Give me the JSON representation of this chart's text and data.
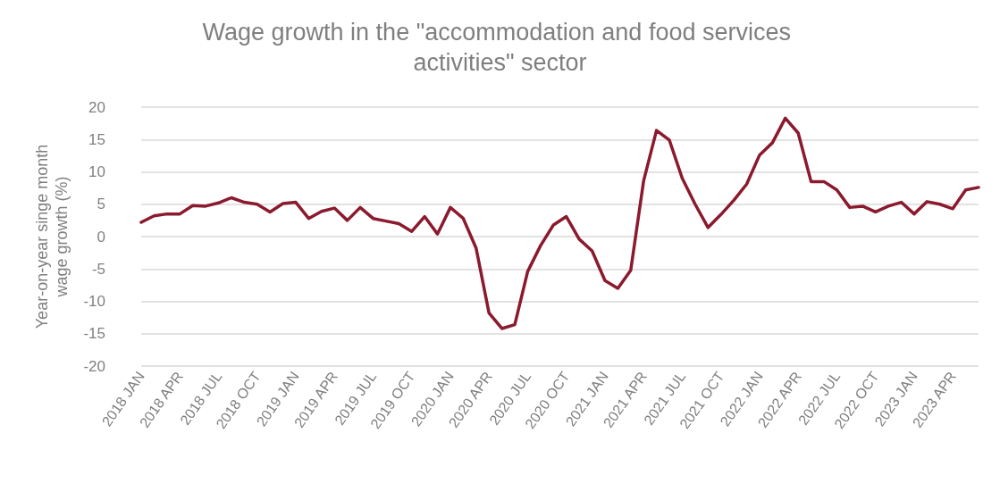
{
  "chart_data": {
    "type": "line",
    "title": "Wage growth in the \"accommodation and food services activities\" sector",
    "ylabel": "Year-on-year singe month wage growth (%)",
    "categories": [
      "2018 JAN",
      null,
      null,
      "2018 APR",
      null,
      null,
      "2018 JUL",
      null,
      null,
      "2018 OCT",
      null,
      null,
      "2019 JAN",
      null,
      null,
      "2019 APR",
      null,
      null,
      "2019 JUL",
      null,
      null,
      "2019 OCT",
      null,
      null,
      "2020 JAN",
      null,
      null,
      "2020 APR",
      null,
      null,
      "2020 JUL",
      null,
      null,
      "2020 OCT",
      null,
      null,
      "2021 JAN",
      null,
      null,
      "2021 APR",
      null,
      null,
      "2021 JUL",
      null,
      null,
      "2021 OCT",
      null,
      null,
      "2022 JAN",
      null,
      null,
      "2022 APR",
      null,
      null,
      "2022 JUL",
      null,
      null,
      "2022 OCT",
      null,
      null,
      "2023 JAN",
      null,
      null,
      "2023 APR",
      null,
      null
    ],
    "series": [
      {
        "color": "#8b1a2e",
        "values": [
          2.2,
          3.2,
          3.5,
          3.5,
          4.8,
          4.7,
          5.2,
          6.0,
          5.3,
          5.0,
          3.8,
          5.1,
          5.3,
          2.8,
          3.9,
          4.4,
          2.5,
          4.5,
          2.8,
          2.4,
          2.0,
          0.8,
          3.1,
          0.4,
          4.5,
          2.8,
          -1.8,
          -11.8,
          -14.2,
          -13.6,
          -5.4,
          -1.4,
          1.8,
          3.1,
          -0.4,
          -2.2,
          -6.8,
          -8.0,
          -5.2,
          8.6,
          16.4,
          14.9,
          9.0,
          5.0,
          1.4,
          3.4,
          5.6,
          8.1,
          12.6,
          14.5,
          18.3,
          16.0,
          8.5,
          8.5,
          7.2,
          4.5,
          4.7,
          3.8,
          4.7,
          5.3,
          3.5,
          5.4,
          5.0,
          4.3,
          7.2,
          7.6
        ]
      }
    ],
    "ylim": [
      -20,
      20
    ],
    "yticks": [
      -20,
      -15,
      -10,
      -5,
      0,
      5,
      10,
      15,
      20
    ],
    "grid": "y",
    "marker": "none",
    "line_style": "solid"
  }
}
